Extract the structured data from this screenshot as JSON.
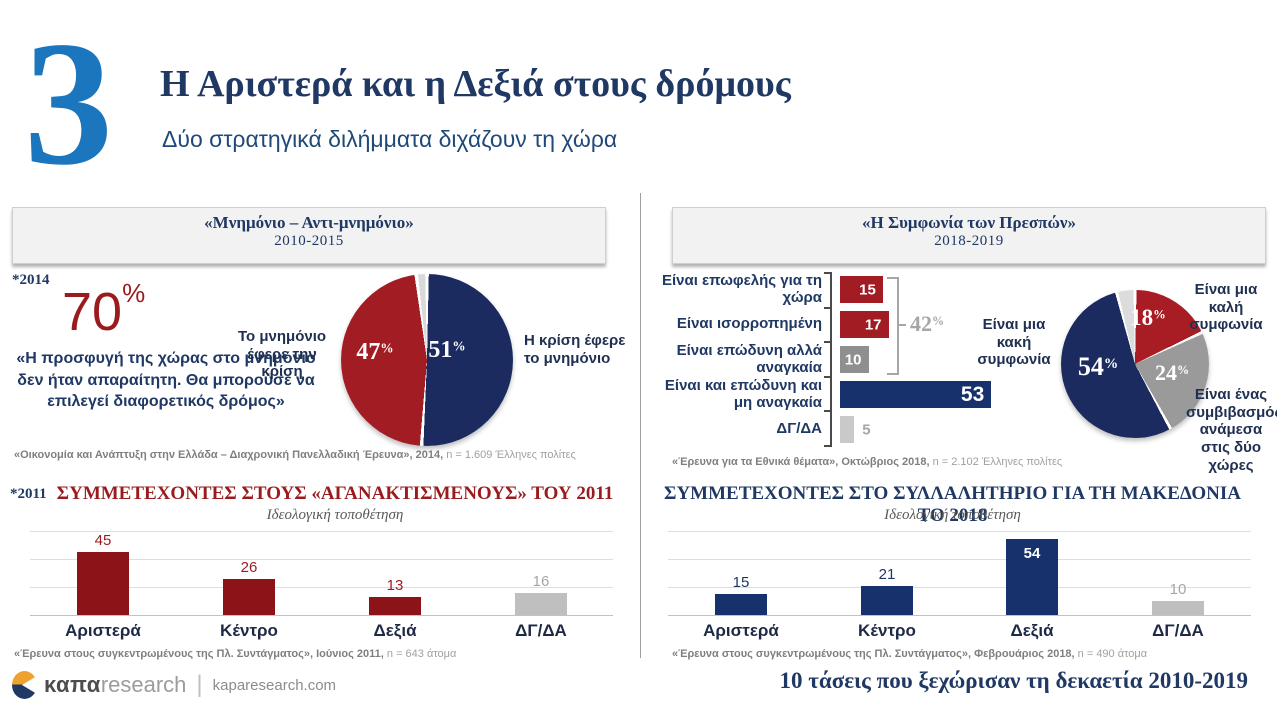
{
  "misc": {
    "percent_sign": "%"
  },
  "colors": {
    "accent_blue": "#1B76BD",
    "navy_text": "#1F3864",
    "navy_fill": "#1B2B5F",
    "navy_bar": "#16316B",
    "dark_red_fill": "#A21C24",
    "dark_red_bar": "#8C1318",
    "red_text": "#9A1B1E",
    "gray_fill": "#8F8F8F",
    "light_gray_fill": "#C9C9C9",
    "dgda_bar_gray": "#BFBFBF",
    "header_box_bg": "#F2F2F2"
  },
  "slide": {
    "number": "3",
    "title": "Η Αριστερά και η Δεξιά στους δρόμους",
    "subtitle": "Δύο στρατηγικά διλήμματα διχάζουν τη χώρα"
  },
  "left_panel": {
    "header_title": "«Μνημόνιο – Αντι-μνημόνιο»",
    "header_period": "2010-2015",
    "year_tag": "*2014",
    "stat_value": "70",
    "stat_quote": "«Η προσφυγή της χώρας στο μνημόνιο δεν ήταν απαραίτητη. Θα μπορούσε να επιλεγεί διαφορετικός δρόμος»",
    "source1_bold": "«Οικονομία και Ανάπτυξη στην Ελλάδα – Διαχρονική Πανελλαδική Έρευνα», 2014,",
    "source1_rest": " n = 1.609 Έλληνες πολίτες",
    "year_tag2": "*2011",
    "source2_bold": "«Έρευνα στους συγκεντρωμένους της Πλ. Συντάγματος», Ιούνιος 2011,",
    "source2_rest": " n = 643 άτομα"
  },
  "right_panel": {
    "header_title": "«Η Συμφωνία των Πρεσπών»",
    "header_period": "2018-2019",
    "source1_bold": "«Έρευνα για τα Εθνικά θέματα», Οκτώβριος 2018,",
    "source1_rest": " n = 2.102 Έλληνες πολίτες",
    "source2_bold": "«Έρευνα στους συγκεντρωμένους της Πλ. Συντάγματος», Φεβρουάριος 2018,",
    "source2_rest": " n = 490 άτομα"
  },
  "footer": {
    "brand_bold": "καπα",
    "brand_light": "research",
    "site": "kaparesearch.com",
    "tagline": "10 τάσεις που ξεχώρισαν τη δεκαετία 2010-2019"
  },
  "chart_data": [
    {
      "type": "pie",
      "title": "«Μνημόνιο – Αντι-μνημόνιο» 2010-2015",
      "slices": [
        {
          "label": "Η κρίση έφερε το μνημόνιο",
          "value": 51,
          "color": "#1B2B5F"
        },
        {
          "label": "Το μνημόνιο έφερε την κρίση",
          "value": 47,
          "color": "#A21C24"
        },
        {
          "label": "",
          "value": 2,
          "color": "#D9D9D9"
        }
      ]
    },
    {
      "type": "bar",
      "title": "ΣΥΜΜΕΤΕΧΟΝΤΕΣ ΣΤΟΥΣ «ΑΓΑΝΑΚΤΙΣΜΕΝΟΥΣ» ΤΟΥ 2011",
      "subtitle": "Ιδεολογική τοποθέτηση",
      "categories": [
        "Αριστερά",
        "Κέντρο",
        "Δεξιά",
        "ΔΓ/ΔΑ"
      ],
      "values": [
        45,
        26,
        13,
        16
      ],
      "ylim": [
        0,
        60
      ],
      "bar_colors": [
        "#8C1318",
        "#8C1318",
        "#8C1318",
        "#BFBFBF"
      ],
      "value_label_colors": [
        "#9A1B1E",
        "#9A1B1E",
        "#9A1B1E",
        "#A6A6A6"
      ],
      "value_label_inside": [
        false,
        false,
        false,
        false
      ]
    },
    {
      "type": "bar-horizontal",
      "title": "«Η Συμφωνία των Πρεσπών» 2018-2019",
      "categories": [
        "Είναι επωφελής για τη χώρα",
        "Είναι ισορροπημένη",
        "Είναι επώδυνη αλλά αναγκαία",
        "Είναι και επώδυνη και μη αναγκαία",
        "ΔΓ/ΔΑ"
      ],
      "values": [
        15,
        17,
        10,
        53,
        5
      ],
      "xlim": [
        0,
        55
      ],
      "bar_colors": [
        "#A21C24",
        "#A21C24",
        "#8F8F8F",
        "#16316B",
        "#C9C9C9"
      ],
      "value_label_inside": [
        true,
        true,
        true,
        true,
        false
      ],
      "group_annotation": {
        "value": "42",
        "covers": [
          0,
          1,
          2
        ]
      }
    },
    {
      "type": "pie",
      "title": "«Η Συμφωνία των Πρεσπών» 2018-2019",
      "slices": [
        {
          "label": "Είναι μια καλή συμφωνία",
          "value": 18,
          "color": "#A81C23"
        },
        {
          "label": "Είναι ένας συμβιβασμός ανάμεσα στις δύο χώρες",
          "value": 24,
          "color": "#9A9A9A"
        },
        {
          "label": "Είναι μια κακή συμφωνία",
          "value": 54,
          "color": "#1B2B5F"
        },
        {
          "label": "",
          "value": 4,
          "color": "#DCDCDC"
        }
      ]
    },
    {
      "type": "bar",
      "title": "ΣΥΜΜΕΤΕΧΟΝΤΕΣ ΣΤΟ ΣΥΛΛΑΛΗΤΗΡΙΟ ΓΙΑ ΤΗ ΜΑΚΕΔΟΝΙΑ ΤΟ 2018",
      "subtitle": "Ιδεολογική τοποθέτηση",
      "categories": [
        "Αριστερά",
        "Κέντρο",
        "Δεξιά",
        "ΔΓ/ΔΑ"
      ],
      "values": [
        15,
        21,
        54,
        10
      ],
      "ylim": [
        0,
        60
      ],
      "bar_colors": [
        "#16316B",
        "#16316B",
        "#16316B",
        "#BFBFBF"
      ],
      "value_label_colors": [
        "#1F3864",
        "#1F3864",
        "#FFFFFF",
        "#A6A6A6"
      ],
      "value_label_inside": [
        false,
        false,
        true,
        false
      ]
    }
  ]
}
